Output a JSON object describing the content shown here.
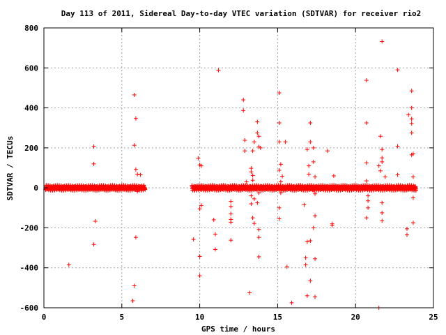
{
  "chart_data": {
    "type": "scatter",
    "title": "Day 113 of 2011, Sidereal Day-to-day VTEC variation (SDTVAR) for receiver rio2",
    "xlabel": "GPS time / hours",
    "ylabel": "SDTVAR / TECUs",
    "xlim": [
      0,
      25
    ],
    "ylim": [
      -600,
      800
    ],
    "xticks": [
      0,
      5,
      10,
      15,
      20,
      25
    ],
    "yticks": [
      -600,
      -400,
      -200,
      0,
      200,
      400,
      600,
      800
    ],
    "grid": true,
    "marker": "plus",
    "color": "#ff0000",
    "dense_band": [
      {
        "x_start": 0.1,
        "x_end": 6.5,
        "y": 0
      },
      {
        "x_start": 9.5,
        "x_end": 23.9,
        "y": 0
      }
    ],
    "points": [
      [
        1.6,
        -385
      ],
      [
        3.2,
        207
      ],
      [
        3.2,
        120
      ],
      [
        3.3,
        -167
      ],
      [
        3.2,
        -283
      ],
      [
        5.8,
        465
      ],
      [
        5.8,
        213
      ],
      [
        5.9,
        347
      ],
      [
        5.9,
        92
      ],
      [
        6.0,
        68
      ],
      [
        6.2,
        65
      ],
      [
        5.9,
        -248
      ],
      [
        6.0,
        -18
      ],
      [
        5.8,
        -490
      ],
      [
        5.7,
        -565
      ],
      [
        9.6,
        -258
      ],
      [
        9.9,
        148
      ],
      [
        10.0,
        115
      ],
      [
        10.1,
        110
      ],
      [
        10.1,
        -88
      ],
      [
        10.0,
        -105
      ],
      [
        10.0,
        -343
      ],
      [
        10.0,
        -440
      ],
      [
        10.9,
        -160
      ],
      [
        11.0,
        -232
      ],
      [
        11.0,
        -308
      ],
      [
        11.2,
        588
      ],
      [
        12.0,
        -68
      ],
      [
        12.0,
        -93
      ],
      [
        12.0,
        -130
      ],
      [
        12.0,
        -158
      ],
      [
        12.0,
        -172
      ],
      [
        12.0,
        -262
      ],
      [
        12.8,
        440
      ],
      [
        12.8,
        387
      ],
      [
        12.9,
        238
      ],
      [
        12.9,
        185
      ],
      [
        13.0,
        30
      ],
      [
        13.2,
        -525
      ],
      [
        13.3,
        98
      ],
      [
        13.3,
        80
      ],
      [
        13.4,
        62
      ],
      [
        13.4,
        38
      ],
      [
        13.3,
        -80
      ],
      [
        13.4,
        -150
      ],
      [
        13.5,
        -178
      ],
      [
        13.4,
        185
      ],
      [
        13.5,
        230
      ],
      [
        13.3,
        -40
      ],
      [
        13.5,
        -55
      ],
      [
        13.7,
        330
      ],
      [
        13.7,
        275
      ],
      [
        13.8,
        258
      ],
      [
        13.8,
        205
      ],
      [
        13.9,
        200
      ],
      [
        13.8,
        -25
      ],
      [
        13.7,
        -75
      ],
      [
        13.8,
        -208
      ],
      [
        13.8,
        -248
      ],
      [
        13.8,
        -345
      ],
      [
        15.1,
        475
      ],
      [
        15.1,
        325
      ],
      [
        15.1,
        230
      ],
      [
        15.2,
        118
      ],
      [
        15.1,
        88
      ],
      [
        15.3,
        58
      ],
      [
        15.2,
        30
      ],
      [
        15.2,
        -25
      ],
      [
        15.1,
        -100
      ],
      [
        15.1,
        -155
      ],
      [
        15.5,
        230
      ],
      [
        15.6,
        -395
      ],
      [
        15.9,
        -575
      ],
      [
        16.7,
        -85
      ],
      [
        16.8,
        -350
      ],
      [
        16.8,
        -385
      ],
      [
        16.9,
        192
      ],
      [
        16.9,
        -270
      ],
      [
        16.9,
        -540
      ],
      [
        17.0,
        110
      ],
      [
        17.0,
        68
      ],
      [
        17.1,
        325
      ],
      [
        17.1,
        230
      ],
      [
        17.1,
        -265
      ],
      [
        17.1,
        -465
      ],
      [
        17.3,
        200
      ],
      [
        17.3,
        130
      ],
      [
        17.4,
        55
      ],
      [
        17.4,
        -140
      ],
      [
        17.3,
        -200
      ],
      [
        17.4,
        -545
      ],
      [
        17.4,
        -355
      ],
      [
        17.3,
        -12
      ],
      [
        17.4,
        -30
      ],
      [
        18.2,
        185
      ],
      [
        18.5,
        -180
      ],
      [
        18.5,
        -188
      ],
      [
        18.6,
        60
      ],
      [
        20.7,
        325
      ],
      [
        20.7,
        125
      ],
      [
        20.7,
        538
      ],
      [
        20.7,
        35
      ],
      [
        20.8,
        -40
      ],
      [
        20.8,
        -65
      ],
      [
        20.8,
        -100
      ],
      [
        20.7,
        -150
      ],
      [
        21.5,
        -600
      ],
      [
        21.5,
        110
      ],
      [
        21.6,
        85
      ],
      [
        21.6,
        258
      ],
      [
        21.7,
        192
      ],
      [
        21.7,
        150
      ],
      [
        21.7,
        130
      ],
      [
        21.7,
        -75
      ],
      [
        21.7,
        -125
      ],
      [
        21.7,
        -165
      ],
      [
        21.7,
        732
      ],
      [
        21.9,
        55
      ],
      [
        22.7,
        590
      ],
      [
        22.7,
        208
      ],
      [
        22.7,
        65
      ],
      [
        23.3,
        -205
      ],
      [
        23.3,
        -235
      ],
      [
        23.4,
        365
      ],
      [
        23.6,
        485
      ],
      [
        23.6,
        400
      ],
      [
        23.6,
        345
      ],
      [
        23.6,
        322
      ],
      [
        23.6,
        275
      ],
      [
        23.6,
        165
      ],
      [
        23.7,
        170
      ],
      [
        23.7,
        55
      ],
      [
        23.7,
        -50
      ],
      [
        23.7,
        -175
      ]
    ]
  }
}
